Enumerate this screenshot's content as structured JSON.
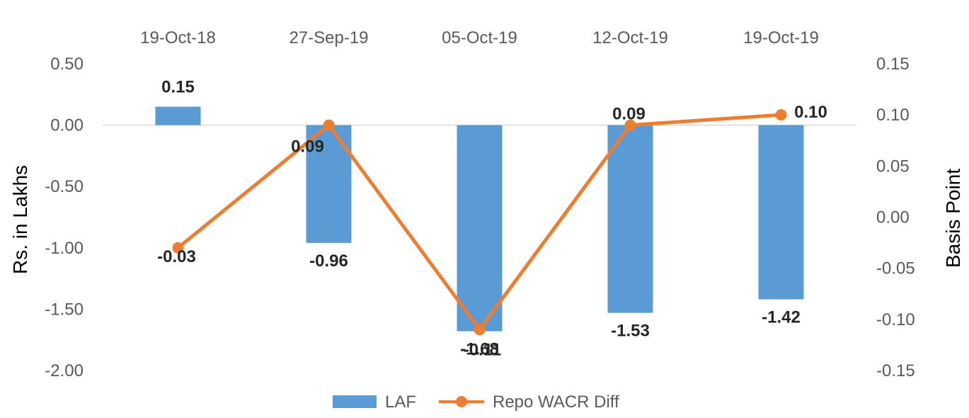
{
  "chart_data": {
    "type": "bar",
    "categories": [
      "19-Oct-18",
      "27-Sep-19",
      "05-Oct-19",
      "12-Oct-19",
      "19-Oct-19"
    ],
    "series": [
      {
        "name": "LAF",
        "type": "bar",
        "axis": "left",
        "color": "#5B9BD5",
        "values": [
          0.15,
          -0.96,
          -1.68,
          -1.53,
          -1.42
        ],
        "labels": [
          "0.15",
          "-0.96",
          "-1.68",
          "-1.53",
          "-1.42"
        ]
      },
      {
        "name": "Repo WACR Diff",
        "type": "line",
        "axis": "right",
        "color": "#ED7D31",
        "marker": "circle",
        "values": [
          -0.03,
          0.09,
          -0.11,
          0.09,
          0.1
        ],
        "labels": [
          "-0.03",
          "0.09",
          "-0.11",
          "0.09",
          "0.10"
        ]
      }
    ],
    "ylabel": "Rs. in Lakhs",
    "y2label": "Basis Point",
    "ylim": [
      -2.0,
      0.5
    ],
    "y2lim": [
      -0.15,
      0.15
    ],
    "yticks": [
      "0.50",
      "0.00",
      "-0.50",
      "-1.00",
      "-1.50",
      "-2.00"
    ],
    "yticks_values": [
      0.5,
      0.0,
      -0.5,
      -1.0,
      -1.5,
      -2.0
    ],
    "y2ticks": [
      "0.15",
      "0.10",
      "0.05",
      "0.00",
      "-0.05",
      "-0.10",
      "-0.15"
    ],
    "y2ticks_values": [
      0.15,
      0.1,
      0.05,
      0.0,
      -0.05,
      -0.1,
      -0.15
    ],
    "category_axis_position": "top",
    "gridlines": false,
    "legend_position": "bottom"
  }
}
